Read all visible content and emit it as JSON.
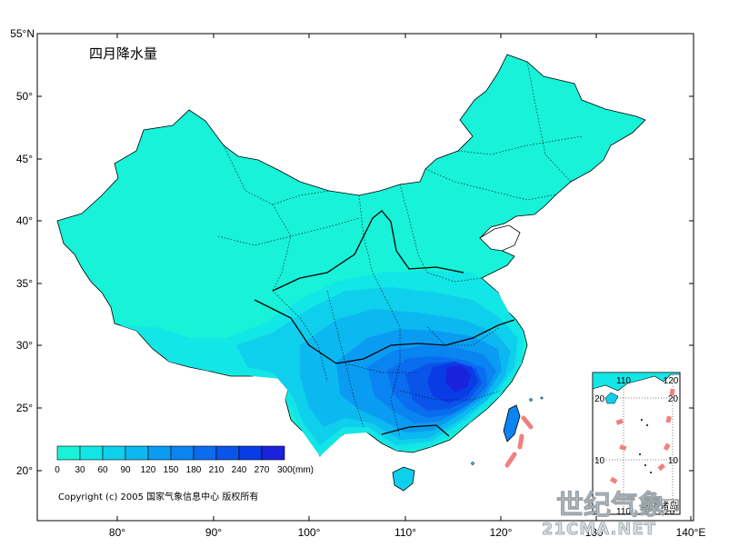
{
  "title": "四月降水量",
  "copyright": "Copyright (c) 2005 国家气象信息中心 版权所有",
  "axes": {
    "lat_ticks": [
      "55°N",
      "50°",
      "45°",
      "40°",
      "35°",
      "30°",
      "25°",
      "20°"
    ],
    "lon_ticks": [
      "80°",
      "90°",
      "100°",
      "110°",
      "120°",
      "130°",
      "140°E"
    ]
  },
  "legend": {
    "labels": [
      "0",
      "30",
      "60",
      "90",
      "120",
      "150",
      "180",
      "210",
      "240",
      "270",
      "300(mm)"
    ],
    "colors": [
      "#17f2d8",
      "#12e6e6",
      "#0fd0ec",
      "#0cb8f0",
      "#0a9cf2",
      "#0a84f0",
      "#0a6cee",
      "#0a54ea",
      "#0a3ce6",
      "#1a22dc"
    ]
  },
  "inset": {
    "title": "南海诸岛",
    "top_ticks": [
      "110",
      "120"
    ],
    "left_ticks": [
      "20",
      "10"
    ],
    "right_ticks": [
      "20",
      "10"
    ],
    "bottom_ticks": [
      "110",
      "120"
    ]
  },
  "watermark": {
    "line1": "世纪气象",
    "line2": "21CMA.NET"
  },
  "map": {
    "variable": "四月降水量",
    "unit": "mm",
    "background_color": "#17f2d8",
    "heavy_color": "#0a3ce6"
  }
}
